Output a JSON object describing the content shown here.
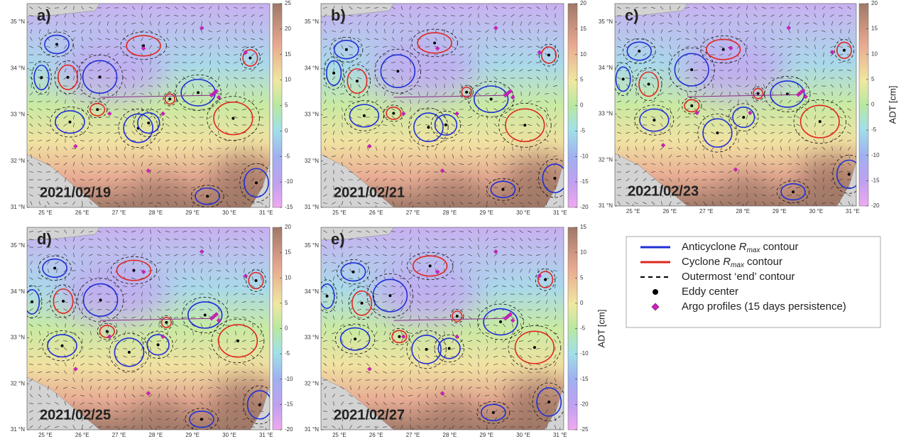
{
  "panels": [
    {
      "label": "a)",
      "date": "2021/02/19",
      "colorbar": {
        "lim": [
          -15,
          25
        ],
        "ticks": [
          25,
          20,
          15,
          10,
          5,
          0,
          -5,
          -10,
          -15
        ]
      }
    },
    {
      "label": "b)",
      "date": "2021/02/21",
      "colorbar": {
        "lim": [
          -20,
          20
        ],
        "ticks": [
          20,
          15,
          10,
          5,
          0,
          -5,
          -10,
          -15,
          -20
        ]
      }
    },
    {
      "label": "c)",
      "date": "2021/02/23",
      "colorbar": {
        "lim": [
          -20,
          20
        ],
        "ticks": [
          20,
          15,
          10,
          5,
          0,
          -5,
          -10,
          -15,
          -20
        ],
        "label": "ADT [cm]"
      }
    },
    {
      "label": "d)",
      "date": "2021/02/25",
      "colorbar": {
        "lim": [
          -20,
          20
        ],
        "ticks": [
          20,
          15,
          10,
          5,
          0,
          -5,
          -10,
          -15,
          -20
        ]
      }
    },
    {
      "label": "e)",
      "date": "2021/02/27",
      "colorbar": {
        "lim": [
          -25,
          15
        ],
        "ticks": [
          15,
          10,
          5,
          0,
          -5,
          -10,
          -15,
          -20,
          -25
        ],
        "label": "ADT [cm]"
      }
    }
  ],
  "lon_lim": [
    24.5,
    31.1
  ],
  "lat_lim": [
    31,
    35.4
  ],
  "lon_ticks": [
    {
      "value": 25,
      "label": "25 °E"
    },
    {
      "value": 26,
      "label": "26 °E"
    },
    {
      "value": 27,
      "label": "27 °E"
    },
    {
      "value": 28,
      "label": "28 °E"
    },
    {
      "value": 29,
      "label": "29 °E"
    },
    {
      "value": 30,
      "label": "30 °E"
    },
    {
      "value": 31,
      "label": "31 °E"
    }
  ],
  "lat_ticks": [
    {
      "value": 31,
      "label": "31 °N"
    },
    {
      "value": 32,
      "label": "32 °N"
    },
    {
      "value": 33,
      "label": "33 °N"
    },
    {
      "value": 34,
      "label": "34 °N"
    },
    {
      "value": 35,
      "label": "35 °N"
    }
  ],
  "legend": [
    {
      "kind": "anticyclone",
      "before": "Anticyclone",
      "symbol": "R",
      "subscript": "max",
      "after": "contour",
      "color": "#1f2fd6"
    },
    {
      "kind": "cyclone",
      "before": "Cyclone",
      "symbol": "R",
      "subscript": "max",
      "after": "contour",
      "color": "#e0261e"
    },
    {
      "kind": "outermost",
      "before": "Outermost ‘end’ contour",
      "color": "#000000"
    },
    {
      "kind": "center",
      "before": "Eddy center",
      "color": "#000000"
    },
    {
      "kind": "argo",
      "before": "Argo profiles (15 days persistence)",
      "color": "#d21fbf"
    }
  ]
}
